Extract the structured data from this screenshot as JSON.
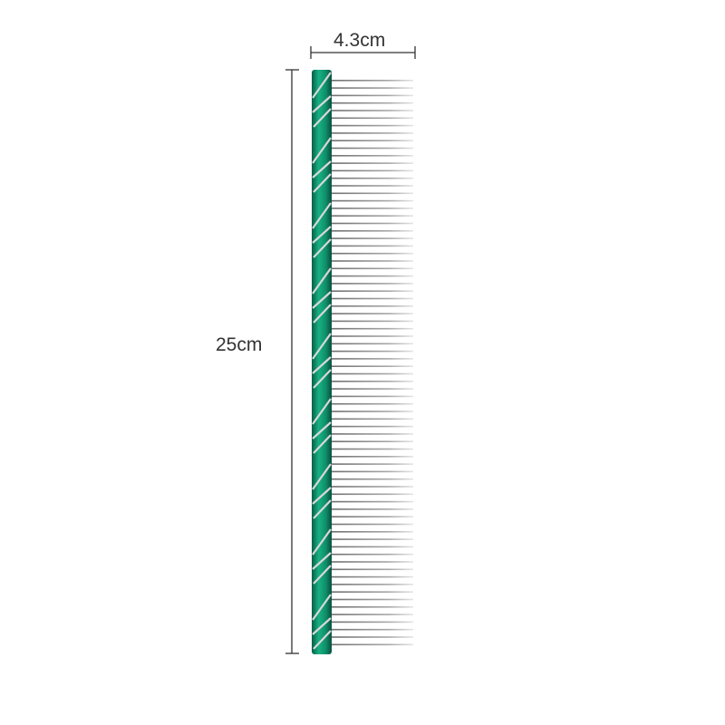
{
  "dimensions": {
    "width_label": "4.3cm",
    "length_label": "25cm"
  },
  "colors": {
    "handle": "#0f8f6a",
    "handle_dark": "#0a5e48",
    "teeth": "#9a9a9a",
    "dimension_lines": "#333333"
  },
  "icons": [
    "comb"
  ]
}
